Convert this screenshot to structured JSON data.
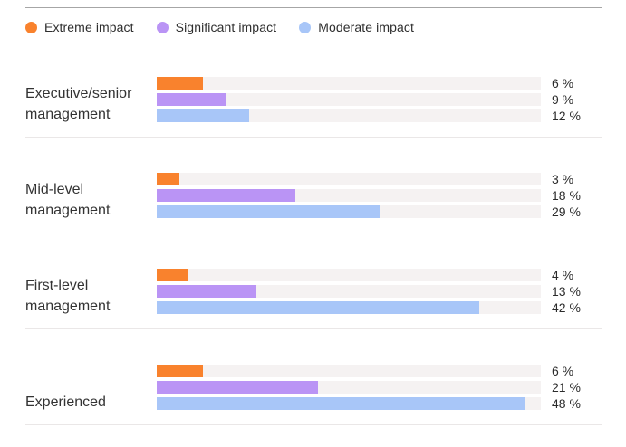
{
  "legend": {
    "items": [
      {
        "label": "Extreme impact",
        "color": "#f9822d"
      },
      {
        "label": "Significant impact",
        "color": "#ba94f5"
      },
      {
        "label": "Moderate impact",
        "color": "#a8c6f8"
      }
    ]
  },
  "chart_data": {
    "type": "bar",
    "orientation": "horizontal",
    "title": "",
    "xlabel": "",
    "ylabel": "",
    "xlim": [
      0,
      50
    ],
    "grid": false,
    "legend_position": "top",
    "value_suffix": " %",
    "track_color": "#f5f2f2",
    "categories": [
      "Executive/senior management",
      "Mid-level management",
      "First-level management",
      "Experienced"
    ],
    "series": [
      {
        "name": "Extreme impact",
        "color": "#f9822d",
        "values": [
          6,
          3,
          4,
          6
        ]
      },
      {
        "name": "Significant impact",
        "color": "#ba94f5",
        "values": [
          9,
          18,
          13,
          21
        ]
      },
      {
        "name": "Moderate impact",
        "color": "#a8c6f8",
        "values": [
          12,
          29,
          42,
          48
        ]
      }
    ]
  },
  "rules": {
    "top_rule_color": "#a6a6a6",
    "group_divider_color": "#eae7e7"
  }
}
